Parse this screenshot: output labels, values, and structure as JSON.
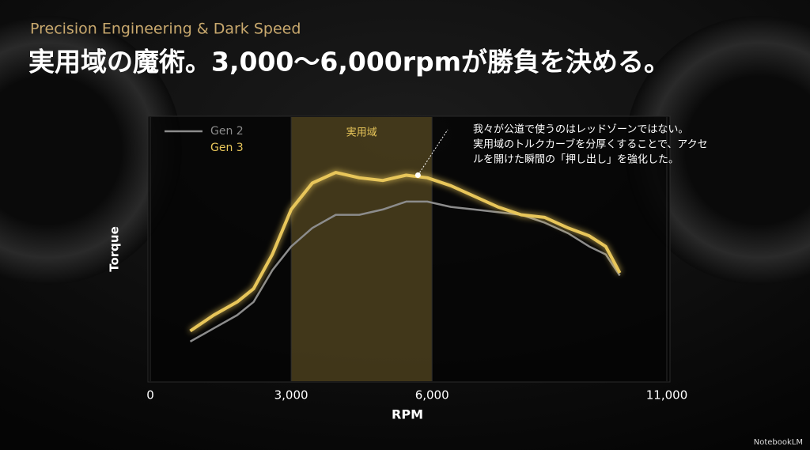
{
  "subtitle": "Precision Engineering & Dark Speed",
  "chart_data": {
    "type": "line",
    "title": "実用域の魔術。3,000〜6,000rpmが勝負を決める。",
    "xlabel": "RPM",
    "ylabel": "Torque",
    "xlim": [
      0,
      11000
    ],
    "xticks": [
      0,
      {
        "value": 3000,
        "label": "3,000"
      },
      {
        "value": 6000,
        "label": "6,000"
      },
      {
        "value": 11000,
        "label": "11,000"
      }
    ],
    "ylim": [
      0,
      100
    ],
    "highlight": {
      "label": "実用域",
      "range": [
        3000,
        6000
      ]
    },
    "annotation": {
      "lines": [
        "我々が公道で使うのはレッドゾーンではない。",
        "実用域のトルクカーブを分厚くすることで、アクセ",
        "ルを開けた瞬間の「押し出し」を強化した。"
      ],
      "x": 5700,
      "y": 78
    },
    "legend": "upper left",
    "x": [
      850,
      1350,
      1850,
      2200,
      2600,
      3000,
      3450,
      3950,
      4450,
      4950,
      5450,
      5900,
      6400,
      6900,
      7400,
      7900,
      8400,
      8900,
      9350,
      9700,
      10000
    ],
    "series": [
      {
        "name": "Gen 2",
        "color": "#8c8c8c",
        "values": [
          15,
          20,
          25,
          30,
          42,
          51,
          58,
          63,
          63,
          65,
          68,
          68,
          66,
          65,
          64,
          63,
          60,
          56,
          51,
          48,
          40
        ]
      },
      {
        "name": "Gen 3",
        "color": "#e8c65a",
        "values": [
          19,
          25,
          30,
          35,
          48,
          65,
          75,
          79,
          77,
          76,
          78,
          77,
          74,
          70,
          66,
          63,
          62,
          58,
          55,
          51,
          41
        ]
      }
    ]
  },
  "footer": "NotebookLM"
}
